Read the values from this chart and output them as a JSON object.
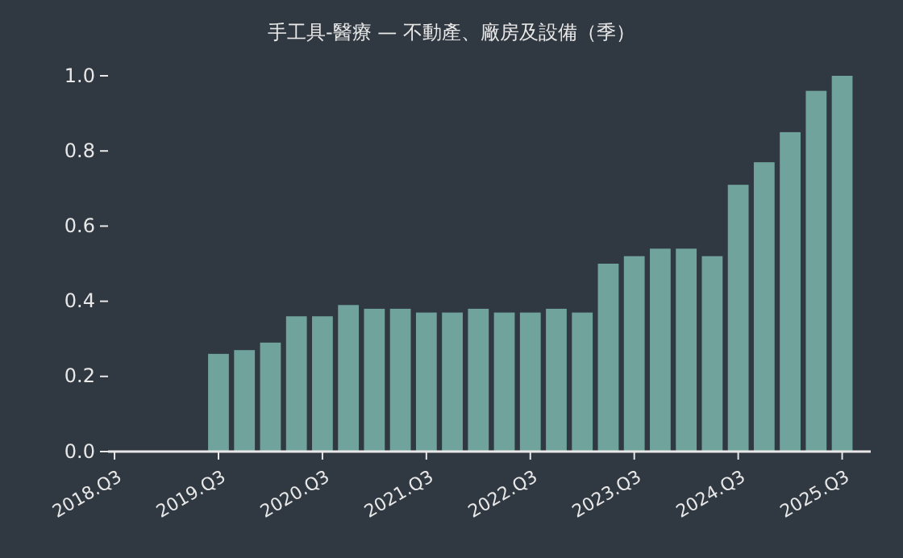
{
  "chart_data": {
    "type": "bar",
    "title": "手工具-醫療 — 不動產、廠房及設備（季）",
    "categories": [
      "2018.Q3",
      null,
      null,
      null,
      "2019.Q3",
      null,
      null,
      null,
      "2020.Q3",
      null,
      null,
      null,
      "2021.Q3",
      null,
      null,
      null,
      "2022.Q3",
      null,
      null,
      null,
      "2023.Q3",
      null,
      null,
      null,
      "2024.Q3",
      null,
      null,
      null,
      "2025.Q3"
    ],
    "values": [
      null,
      null,
      null,
      null,
      0.26,
      0.27,
      0.29,
      0.36,
      0.36,
      0.39,
      0.38,
      0.38,
      0.37,
      0.37,
      0.38,
      0.37,
      0.37,
      0.38,
      0.37,
      0.5,
      0.52,
      0.54,
      0.54,
      0.52,
      0.71,
      0.77,
      0.85,
      0.96,
      1.0
    ],
    "color": "#6fa39b",
    "ylim": [
      0,
      1.0
    ],
    "yticks": [
      {
        "value": 0,
        "label": "0.0"
      },
      {
        "value": 0.2,
        "label": "0.2"
      },
      {
        "value": 0.4,
        "label": "0.4"
      },
      {
        "value": 0.6,
        "label": "0.6"
      },
      {
        "value": 0.8,
        "label": "0.8"
      },
      {
        "value": 1,
        "label": "1.0"
      }
    ],
    "grid": false
  }
}
